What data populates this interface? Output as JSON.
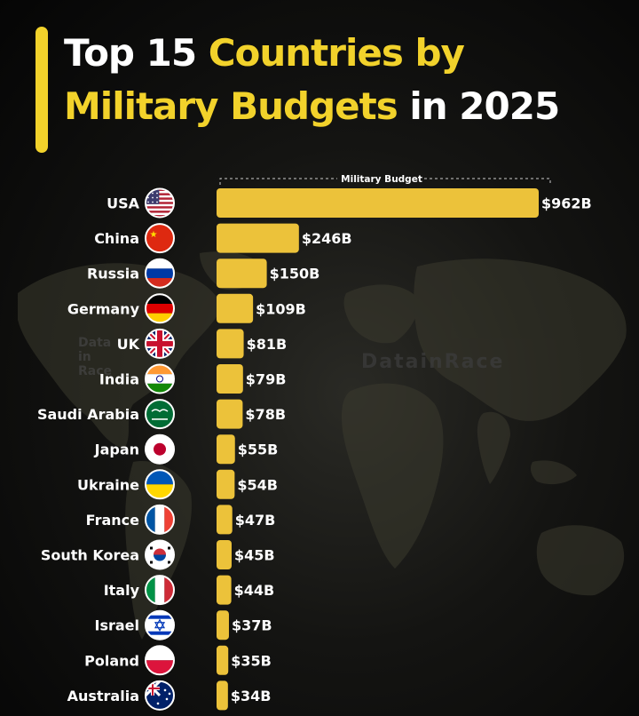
{
  "header": {
    "title_part1": "Top 15 ",
    "title_part2": "Countries by",
    "title_part3": "Military Budgets",
    "title_part4": " in 2025"
  },
  "watermark": {
    "text": "DatainRace",
    "small": "DatainRace"
  },
  "colors": {
    "accent": "#f2d22b",
    "bar": "#ecc23a",
    "text": "#ffffff",
    "background": "#0b0b0b"
  },
  "chart_data": {
    "type": "bar",
    "orientation": "horizontal",
    "legend_label": "Military Budget",
    "unit_prefix": "$",
    "unit_suffix": "B",
    "categories": [
      "USA",
      "China",
      "Russia",
      "Germany",
      "UK",
      "India",
      "Saudi Arabia",
      "Japan",
      "Ukraine",
      "France",
      "South Korea",
      "Italy",
      "Israel",
      "Poland",
      "Australia"
    ],
    "values": [
      962,
      246,
      150,
      109,
      81,
      79,
      78,
      55,
      54,
      47,
      45,
      44,
      37,
      35,
      34
    ],
    "value_labels": [
      "$962B",
      "$246B",
      "$150B",
      "$109B",
      "$81B",
      "$79B",
      "$78B",
      "$55B",
      "$54B",
      "$47B",
      "$45B",
      "$44B",
      "$37B",
      "$35B",
      "$34B"
    ],
    "flags": [
      "usa-flag-icon",
      "china-flag-icon",
      "russia-flag-icon",
      "germany-flag-icon",
      "uk-flag-icon",
      "india-flag-icon",
      "saudi-arabia-flag-icon",
      "japan-flag-icon",
      "ukraine-flag-icon",
      "france-flag-icon",
      "south-korea-flag-icon",
      "italy-flag-icon",
      "israel-flag-icon",
      "poland-flag-icon",
      "australia-flag-icon"
    ]
  }
}
